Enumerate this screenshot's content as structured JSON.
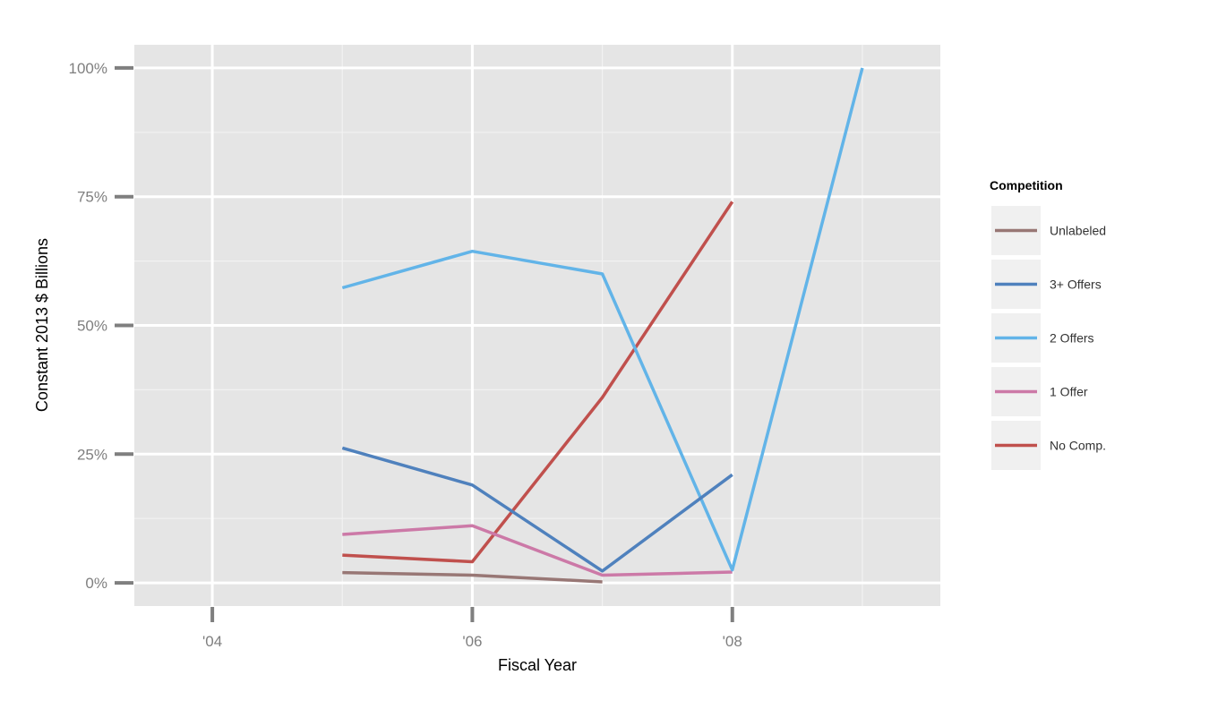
{
  "chart_data": {
    "type": "line",
    "xlabel": "Fiscal Year",
    "ylabel": "Constant 2013 $ Billions",
    "xlim": [
      2003.4,
      2009.6
    ],
    "ylim": [
      -0.045,
      1.045
    ],
    "x_ticks": [
      2004,
      2006,
      2008
    ],
    "x_tick_labels": [
      "'04",
      "'06",
      "'08"
    ],
    "y_ticks": [
      0,
      0.25,
      0.5,
      0.75,
      1.0
    ],
    "y_tick_labels": [
      "0%",
      "25%",
      "50%",
      "75%",
      "100%"
    ],
    "grid": true,
    "legend": {
      "title": "Competition",
      "placement": "right"
    },
    "series": [
      {
        "name": "Unlabeled",
        "color": "#987775",
        "points": [
          [
            2005,
            0.02
          ],
          [
            2006,
            0.015
          ],
          [
            2007,
            0.002
          ]
        ]
      },
      {
        "name": "3+ Offers",
        "color": "#4f81bd",
        "points": [
          [
            2005,
            0.262
          ],
          [
            2006,
            0.19
          ],
          [
            2007,
            0.023
          ],
          [
            2008,
            0.21
          ]
        ]
      },
      {
        "name": "2 Offers",
        "color": "#62b4e8",
        "points": [
          [
            2005,
            0.573
          ],
          [
            2006,
            0.644
          ],
          [
            2007,
            0.6
          ],
          [
            2008,
            0.025
          ],
          [
            2009,
            1.0
          ]
        ]
      },
      {
        "name": "1 Offer",
        "color": "#cc79a7",
        "points": [
          [
            2005,
            0.094
          ],
          [
            2006,
            0.111
          ],
          [
            2007,
            0.015
          ],
          [
            2008,
            0.021
          ]
        ]
      },
      {
        "name": "No Comp.",
        "color": "#c0504d",
        "points": [
          [
            2005,
            0.054
          ],
          [
            2006,
            0.041
          ],
          [
            2007,
            0.36
          ],
          [
            2008,
            0.74
          ]
        ]
      }
    ]
  }
}
